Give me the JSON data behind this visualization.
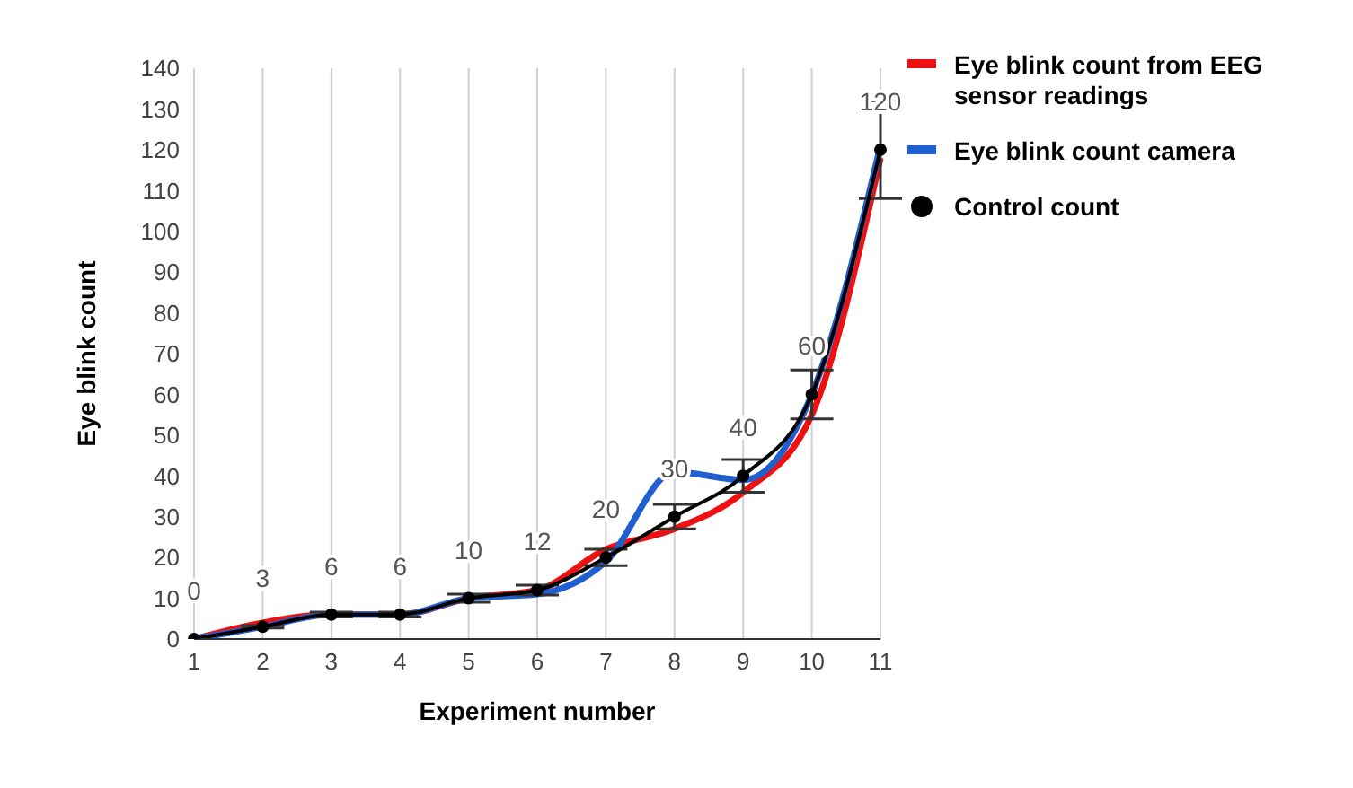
{
  "chart_data": {
    "type": "line",
    "xlabel": "Experiment number",
    "ylabel": "Eye blink count",
    "categories": [
      "1",
      "2",
      "3",
      "4",
      "5",
      "6",
      "7",
      "8",
      "9",
      "10",
      "11"
    ],
    "series": [
      {
        "name": "Eye blink count from EEG sensor readings",
        "color": "#ee1111",
        "marker": "none",
        "values": [
          0,
          4,
          6,
          6,
          10,
          12,
          22,
          27,
          36,
          55,
          118
        ]
      },
      {
        "name": "Eye blink count camera",
        "color": "#1f5fd0",
        "marker": "none",
        "values": [
          0,
          3,
          6,
          6,
          10,
          11,
          19,
          41,
          39,
          60,
          121
        ]
      },
      {
        "name": "Control count",
        "color": "#000000",
        "marker": "circle",
        "values": [
          0,
          3,
          6,
          6,
          10,
          12,
          20,
          30,
          40,
          60,
          120
        ],
        "errors": [
          0,
          0.3,
          0.6,
          0.6,
          1,
          1.2,
          2,
          3,
          4,
          6,
          12
        ],
        "value_labels": [
          "0",
          "3",
          "6",
          "6",
          "10",
          "12",
          "20",
          "30",
          "40",
          "60",
          "120"
        ]
      }
    ],
    "ylim": [
      0,
      140
    ],
    "yticks": [
      0,
      10,
      20,
      30,
      40,
      50,
      60,
      70,
      80,
      90,
      100,
      110,
      120,
      130,
      140
    ],
    "grid": "x",
    "legend": "top right",
    "line_style": "solid"
  }
}
